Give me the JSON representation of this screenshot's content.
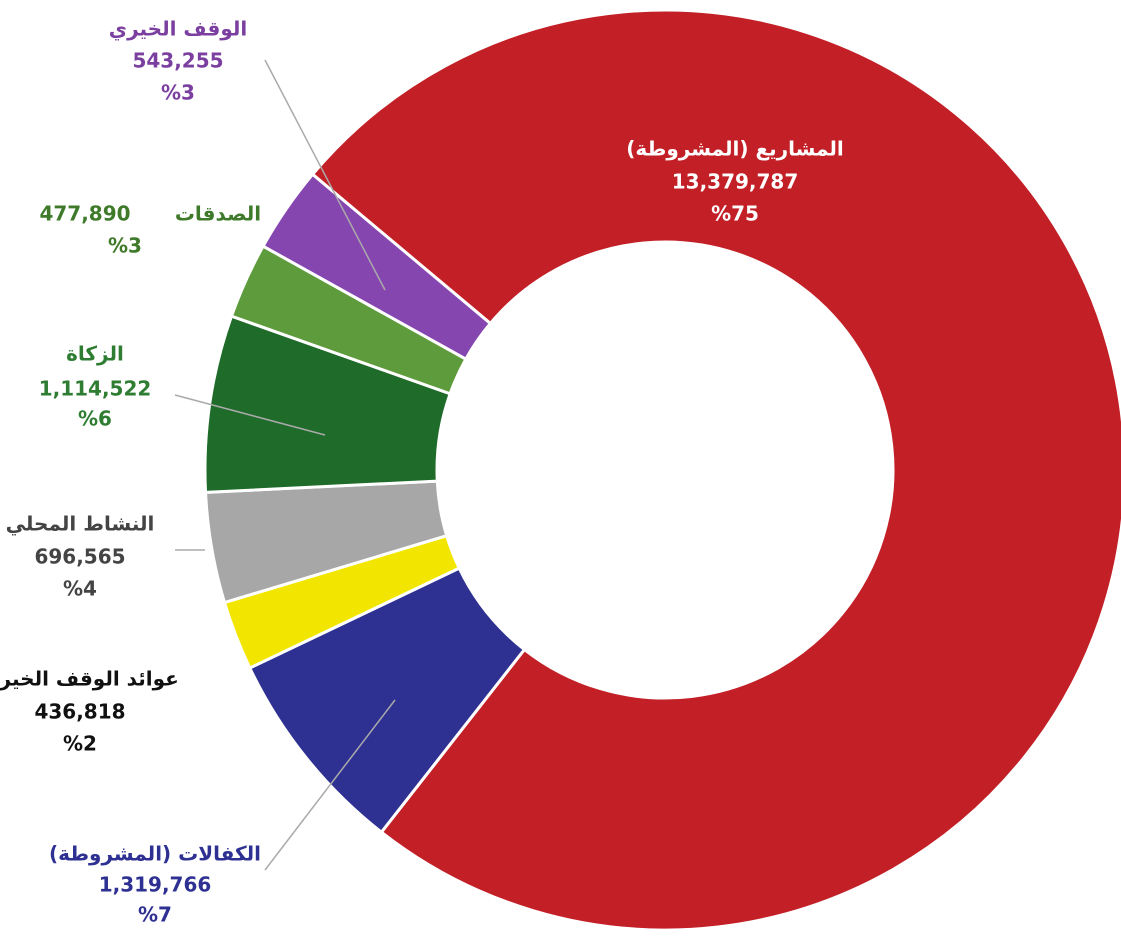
{
  "chart_data": {
    "type": "pie",
    "donut": true,
    "categories": [
      "المشاريع (المشروطة)",
      "الكفالات (المشروطة)",
      "عوائد الوقف الخيري",
      "النشاط المحلي",
      "الزكاة",
      "الصدقات",
      "الوقف الخيري"
    ],
    "values": [
      13379787,
      1319766,
      436818,
      696565,
      1114522,
      477890,
      543255
    ],
    "value_labels": [
      "13,379,787",
      "1,319,766",
      "436,818",
      "696,565",
      "1,114,522",
      "477,890",
      "543,255"
    ],
    "percents": [
      75,
      7,
      2,
      4,
      6,
      3,
      3
    ],
    "percent_labels": [
      "%75",
      "%7",
      "%2",
      "%4",
      "%6",
      "%3",
      "%3"
    ],
    "colors": [
      "#c21f26",
      "#2e3192",
      "#f2e600",
      "#a7a7a7",
      "#1f6b2a",
      "#5e9b3c",
      "#8646b0"
    ]
  }
}
